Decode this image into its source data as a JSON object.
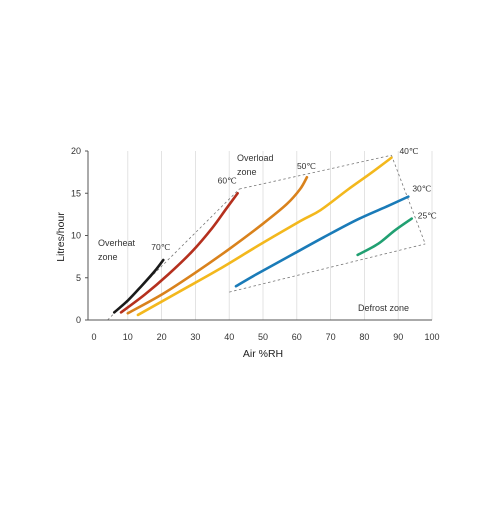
{
  "chart_data": {
    "type": "line",
    "xlabel": "Air %RH",
    "ylabel": "Litres/hour",
    "xlim": [
      0,
      100
    ],
    "ylim": [
      0,
      20
    ],
    "x_ticks": [
      0,
      10,
      20,
      30,
      40,
      50,
      60,
      70,
      80,
      90,
      100
    ],
    "y_ticks": [
      0,
      5,
      10,
      15,
      20
    ],
    "grid": "vertical",
    "series": [
      {
        "name": "70℃",
        "color": "#1a1a1a",
        "x": [
          6,
          10,
          14,
          18,
          20.5
        ],
        "y": [
          0.9,
          2.3,
          4.0,
          5.8,
          7.1
        ]
      },
      {
        "name": "60℃",
        "color": "#b5301e",
        "x": [
          8,
          15,
          22,
          29,
          35,
          39,
          42.5
        ],
        "y": [
          0.9,
          3.0,
          5.4,
          8.1,
          10.9,
          13.1,
          15.0
        ]
      },
      {
        "name": "50℃",
        "color": "#d9821c",
        "x": [
          10,
          20,
          30,
          40,
          50,
          57,
          61,
          63
        ],
        "y": [
          0.8,
          3.0,
          5.6,
          8.4,
          11.4,
          13.7,
          15.5,
          16.9
        ]
      },
      {
        "name": "40℃",
        "color": "#f3b81d",
        "x": [
          13,
          25,
          37,
          49,
          61,
          67,
          75,
          82,
          88
        ],
        "y": [
          0.6,
          3.3,
          6.0,
          8.9,
          11.7,
          13.0,
          15.4,
          17.4,
          19.2
        ]
      },
      {
        "name": "30℃",
        "color": "#1a7bb8",
        "x": [
          42,
          48,
          58,
          68,
          78,
          87,
          93
        ],
        "y": [
          4.0,
          5.4,
          7.6,
          9.8,
          11.9,
          13.5,
          14.6
        ]
      },
      {
        "name": "25℃",
        "color": "#21a072",
        "x": [
          78,
          84,
          89,
          94
        ],
        "y": [
          7.7,
          9.0,
          10.6,
          12.0
        ]
      }
    ],
    "boundaries": [
      {
        "name": "overheat-overload boundary",
        "x": [
          4,
          43
        ],
        "y": [
          0,
          15.5
        ]
      },
      {
        "name": "overload boundary",
        "x": [
          43,
          88
        ],
        "y": [
          15.5,
          19.5
        ]
      },
      {
        "name": "right boundary",
        "x": [
          88,
          98
        ],
        "y": [
          19.5,
          9.0
        ]
      },
      {
        "name": "defrost boundary",
        "x": [
          40,
          98
        ],
        "y": [
          3.3,
          9.0
        ]
      }
    ],
    "annotations": {
      "overheat_zone": [
        "Overheat",
        "zone"
      ],
      "overload_zone": [
        "Overload",
        "zone"
      ],
      "defrost_zone": "Defrost zone"
    }
  }
}
